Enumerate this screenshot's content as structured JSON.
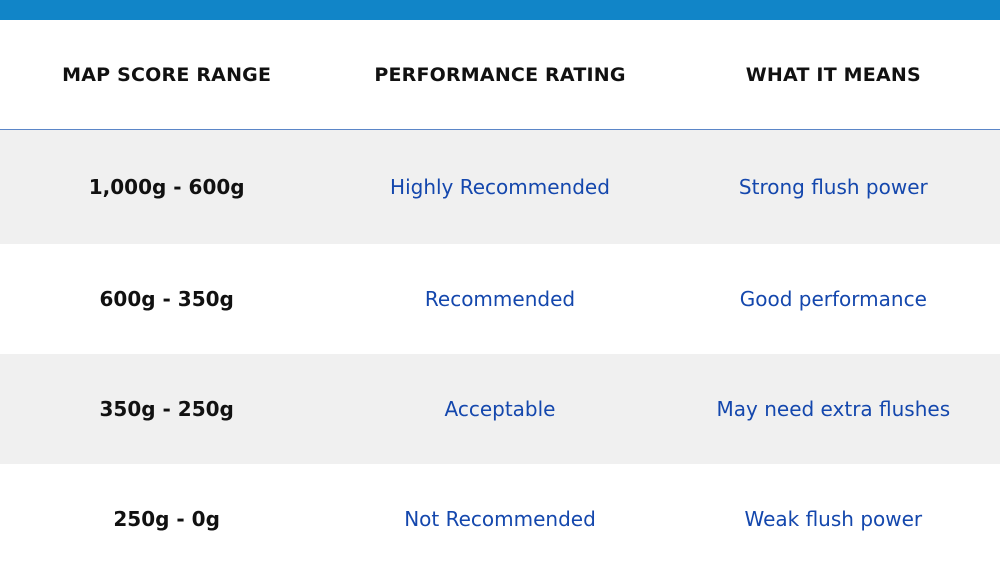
{
  "colors": {
    "top_bar": "#1185c8",
    "header_rule": "#5b86c8",
    "row_alt": "#f0f0f0",
    "text_blue": "#1447ad"
  },
  "table": {
    "headers": [
      "MAP SCORE RANGE",
      "PERFORMANCE RATING",
      "WHAT IT MEANS"
    ],
    "rows": [
      {
        "range": "1,000g - 600g",
        "rating": "Highly Recommended",
        "meaning": "Strong flush power"
      },
      {
        "range": "600g - 350g",
        "rating": "Recommended",
        "meaning": "Good performance"
      },
      {
        "range": "350g - 250g",
        "rating": "Acceptable",
        "meaning": "May need extra flushes"
      },
      {
        "range": "250g - 0g",
        "rating": "Not Recommended",
        "meaning": "Weak flush power"
      }
    ]
  }
}
